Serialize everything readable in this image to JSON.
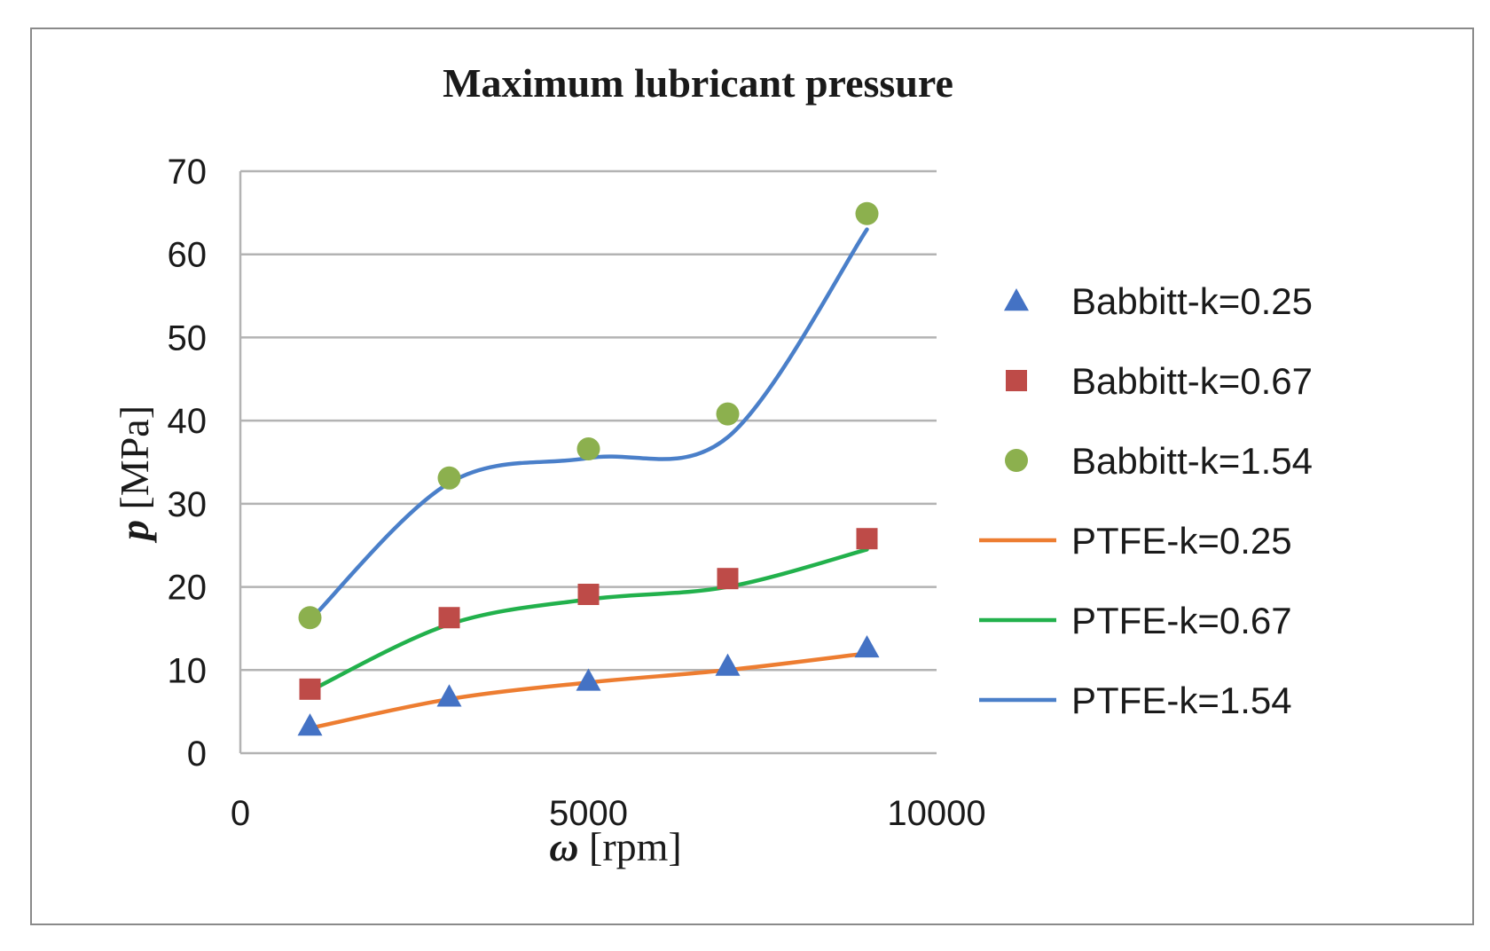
{
  "chart_data": {
    "type": "scatter",
    "title": "Maximum lubricant pressure",
    "xlabel": {
      "symbol": "ω",
      "unit": "[rpm]"
    },
    "ylabel": {
      "symbol": "p",
      "unit": "[MPa]"
    },
    "xlim": [
      0,
      10000
    ],
    "ylim": [
      0,
      70
    ],
    "xticks": [
      0,
      5000,
      10000
    ],
    "yticks": [
      0,
      10,
      20,
      30,
      40,
      50,
      60,
      70
    ],
    "grid": "horizontal",
    "legend_position": "right",
    "series": [
      {
        "name": "Babbitt-k=0.25",
        "kind": "marker",
        "marker": "triangle",
        "color": "#4472c4",
        "x": [
          1000,
          3000,
          5000,
          7000,
          9000
        ],
        "y": [
          3.3,
          6.8,
          8.7,
          10.5,
          12.7
        ]
      },
      {
        "name": "Babbitt-k=0.67",
        "kind": "marker",
        "marker": "square",
        "color": "#be4b48",
        "x": [
          1000,
          3000,
          5000,
          7000,
          9000
        ],
        "y": [
          7.7,
          16.3,
          19.1,
          21.0,
          25.8
        ]
      },
      {
        "name": "Babbitt-k=1.54",
        "kind": "marker",
        "marker": "circle",
        "color": "#8cb04e",
        "x": [
          1000,
          3000,
          5000,
          7000,
          9000
        ],
        "y": [
          16.3,
          33.1,
          36.6,
          40.8,
          64.9
        ]
      },
      {
        "name": "PTFE-k=0.25",
        "kind": "line",
        "color": "#ed7d31",
        "x": [
          1000,
          3000,
          5000,
          7000,
          9000
        ],
        "y": [
          3.0,
          6.5,
          8.5,
          10.0,
          12.0
        ]
      },
      {
        "name": "PTFE-k=0.67",
        "kind": "line",
        "color": "#22b14c",
        "x": [
          1000,
          3000,
          5000,
          7000,
          9000
        ],
        "y": [
          7.5,
          15.5,
          18.5,
          20.0,
          24.5
        ]
      },
      {
        "name": "PTFE-k=1.54",
        "kind": "line",
        "color": "#4a7fc9",
        "x": [
          1000,
          3000,
          5000,
          7000,
          9000
        ],
        "y": [
          16.0,
          32.5,
          35.5,
          38.0,
          63.0
        ]
      }
    ]
  }
}
